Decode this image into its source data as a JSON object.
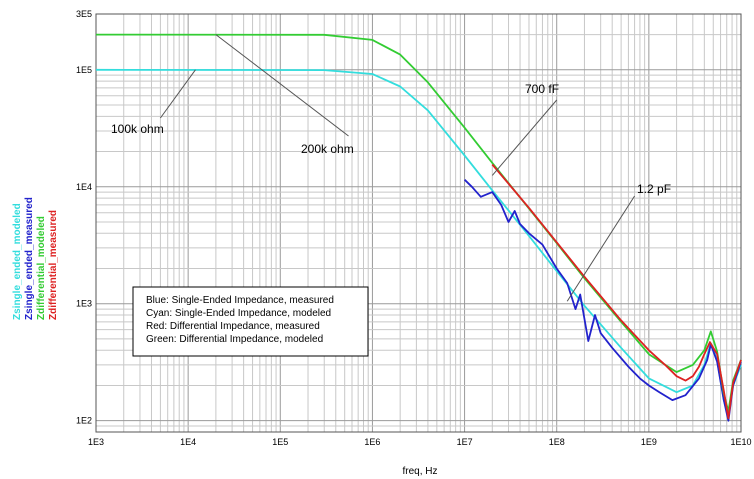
{
  "chart_data": {
    "type": "line",
    "xlabel": "freq, Hz",
    "xscale": "log",
    "yscale": "log",
    "xlim": [
      1000,
      10000000000
    ],
    "ylim": [
      80,
      300000
    ],
    "grid": true,
    "x_ticks": [
      "1E3",
      "1E4",
      "1E5",
      "1E6",
      "1E7",
      "1E8",
      "1E9",
      "1E10"
    ],
    "y_ticks": [
      {
        "label": "3E5",
        "value": 300000
      },
      {
        "label": "1E5",
        "value": 100000
      },
      {
        "label": "1E4",
        "value": 10000
      },
      {
        "label": "1E3",
        "value": 1000
      },
      {
        "label": "1E2",
        "value": 100
      }
    ],
    "series": [
      {
        "name": "Zsingle_ended_modeled",
        "color": "#33dddd",
        "points": [
          [
            1000,
            100000
          ],
          [
            300000,
            99500
          ],
          [
            1000000,
            92000
          ],
          [
            2000000,
            72000
          ],
          [
            4000000,
            45000
          ],
          [
            10000000,
            18500
          ],
          [
            20000000,
            9300
          ],
          [
            50000000,
            3800
          ],
          [
            100000000,
            1900
          ],
          [
            200000000,
            960
          ],
          [
            500000000,
            420
          ],
          [
            1000000000,
            230
          ],
          [
            2000000000,
            175
          ],
          [
            3000000000,
            200
          ],
          [
            4000000000,
            300
          ],
          [
            4700000000,
            460
          ],
          [
            5500000000,
            330
          ],
          [
            6500000000,
            150
          ],
          [
            7300000000,
            110
          ],
          [
            8200000000,
            200
          ],
          [
            10000000000,
            300
          ]
        ]
      },
      {
        "name": "Zsingle_ended_measured",
        "color": "#2222cc",
        "points": [
          [
            10000000,
            11500
          ],
          [
            12000000,
            10000
          ],
          [
            15000000,
            8200
          ],
          [
            20000000,
            9000
          ],
          [
            25000000,
            7000
          ],
          [
            30000000,
            5000
          ],
          [
            35000000,
            6200
          ],
          [
            40000000,
            4800
          ],
          [
            50000000,
            4000
          ],
          [
            70000000,
            3200
          ],
          [
            100000000,
            2000
          ],
          [
            130000000,
            1500
          ],
          [
            160000000,
            900
          ],
          [
            180000000,
            1200
          ],
          [
            220000000,
            480
          ],
          [
            260000000,
            800
          ],
          [
            300000000,
            560
          ],
          [
            400000000,
            420
          ],
          [
            600000000,
            290
          ],
          [
            800000000,
            230
          ],
          [
            1000000000,
            200
          ],
          [
            1300000000,
            175
          ],
          [
            1800000000,
            150
          ],
          [
            2500000000,
            165
          ],
          [
            3500000000,
            230
          ],
          [
            4300000000,
            330
          ],
          [
            4700000000,
            450
          ],
          [
            5500000000,
            320
          ],
          [
            6500000000,
            150
          ],
          [
            7300000000,
            100
          ],
          [
            8200000000,
            200
          ],
          [
            10000000000,
            320
          ]
        ]
      },
      {
        "name": "Zdifferential_modeled",
        "color": "#33cc33",
        "points": [
          [
            1000,
            200000
          ],
          [
            300000,
            199000
          ],
          [
            1000000,
            180000
          ],
          [
            2000000,
            135000
          ],
          [
            4000000,
            78000
          ],
          [
            10000000,
            32000
          ],
          [
            20000000,
            16000
          ],
          [
            50000000,
            6500
          ],
          [
            100000000,
            3300
          ],
          [
            200000000,
            1650
          ],
          [
            500000000,
            700
          ],
          [
            1000000000,
            370
          ],
          [
            2000000000,
            260
          ],
          [
            3000000000,
            300
          ],
          [
            4000000000,
            400
          ],
          [
            4700000000,
            580
          ],
          [
            5500000000,
            390
          ],
          [
            6500000000,
            170
          ],
          [
            7300000000,
            120
          ],
          [
            8200000000,
            220
          ],
          [
            10000000000,
            330
          ]
        ]
      },
      {
        "name": "Zdifferential_measured",
        "color": "#dd2222",
        "points": [
          [
            20000000,
            15500
          ],
          [
            50000000,
            6600
          ],
          [
            100000000,
            3350
          ],
          [
            200000000,
            1700
          ],
          [
            500000000,
            720
          ],
          [
            1000000000,
            400
          ],
          [
            1500000000,
            300
          ],
          [
            2000000000,
            240
          ],
          [
            2500000000,
            220
          ],
          [
            3000000000,
            240
          ],
          [
            3500000000,
            290
          ],
          [
            4000000000,
            370
          ],
          [
            4600000000,
            470
          ],
          [
            5500000000,
            370
          ],
          [
            6500000000,
            180
          ],
          [
            7300000000,
            105
          ],
          [
            8200000000,
            210
          ],
          [
            10000000000,
            330
          ]
        ]
      }
    ],
    "annotations": [
      {
        "text": "100k ohm",
        "x": 10000,
        "y": 100000
      },
      {
        "text": "200k ohm",
        "x": 20000,
        "y": 200000
      },
      {
        "text": "700 fF",
        "x": 12000000,
        "y": 13000
      },
      {
        "text": "1.2 pF",
        "x": 120000000,
        "y": 1050
      }
    ],
    "legend_lines": [
      "Blue: Single-Ended Impedance, measured",
      "Cyan: Single-Ended Impedance, modeled",
      "Red: Differential Impedance, measured",
      "Green: Differential Impedance, modeled"
    ]
  }
}
